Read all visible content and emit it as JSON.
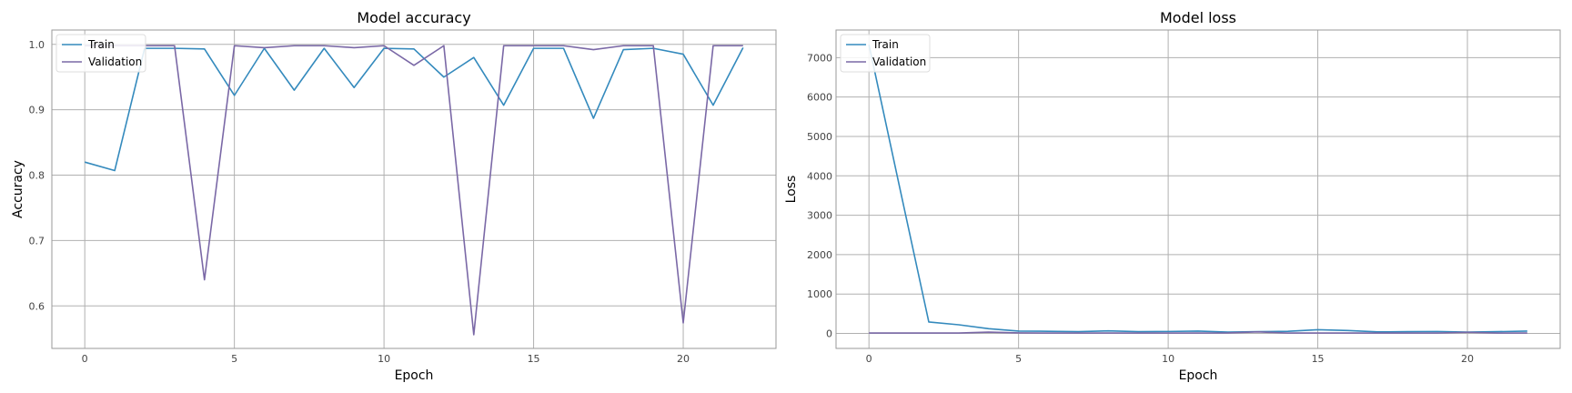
{
  "colors": {
    "train": "#348ABD",
    "validation": "#7A68A6"
  },
  "chart_data": [
    {
      "type": "line",
      "title": "Model accuracy",
      "xlabel": "Epoch",
      "ylabel": "Accuracy",
      "xlim": [
        -1.1,
        23.1
      ],
      "ylim": [
        0.535,
        1.022
      ],
      "xticks": [
        0,
        5,
        10,
        15,
        20
      ],
      "yticks": [
        0.6,
        0.7,
        0.8,
        0.9,
        1.0
      ],
      "ytick_labels": [
        "0.6",
        "0.7",
        "0.8",
        "0.9",
        "1.0"
      ],
      "grid": true,
      "legend": "upper left",
      "x": [
        0,
        1,
        2,
        3,
        4,
        5,
        6,
        7,
        8,
        9,
        10,
        11,
        12,
        13,
        14,
        15,
        16,
        17,
        18,
        19,
        20,
        21,
        22
      ],
      "series": [
        {
          "name": "Train",
          "values": [
            0.82,
            0.807,
            0.994,
            0.994,
            0.993,
            0.922,
            0.994,
            0.93,
            0.994,
            0.934,
            0.994,
            0.993,
            0.95,
            0.98,
            0.907,
            0.994,
            0.994,
            0.887,
            0.992,
            0.994,
            0.985,
            0.907,
            0.995
          ]
        },
        {
          "name": "Validation",
          "values": [
            0.998,
            0.998,
            0.998,
            0.998,
            0.64,
            0.998,
            0.995,
            0.998,
            0.998,
            0.995,
            0.998,
            0.968,
            0.998,
            0.556,
            0.998,
            0.998,
            0.998,
            0.992,
            0.998,
            0.998,
            0.574,
            0.998,
            0.998
          ]
        }
      ]
    },
    {
      "type": "line",
      "title": "Model loss",
      "xlabel": "Epoch",
      "ylabel": "Loss",
      "xlim": [
        -1.1,
        23.1
      ],
      "ylim": [
        -380,
        7700
      ],
      "xticks": [
        0,
        5,
        10,
        15,
        20
      ],
      "yticks": [
        0,
        1000,
        2000,
        3000,
        4000,
        5000,
        6000,
        7000
      ],
      "ytick_labels": [
        "0",
        "1000",
        "2000",
        "3000",
        "4000",
        "5000",
        "6000",
        "7000"
      ],
      "grid": true,
      "legend": "upper left",
      "x": [
        0,
        1,
        2,
        3,
        4,
        5,
        6,
        7,
        8,
        9,
        10,
        11,
        12,
        13,
        14,
        15,
        16,
        17,
        18,
        19,
        20,
        21,
        22
      ],
      "series": [
        {
          "name": "Train",
          "values": [
            7330,
            3800,
            290,
            220,
            120,
            60,
            55,
            45,
            65,
            45,
            50,
            60,
            35,
            45,
            55,
            95,
            75,
            40,
            45,
            50,
            35,
            45,
            60
          ]
        },
        {
          "name": "Validation",
          "values": [
            10,
            10,
            10,
            10,
            35,
            15,
            10,
            10,
            10,
            10,
            10,
            10,
            15,
            40,
            10,
            10,
            10,
            10,
            10,
            10,
            30,
            10,
            10
          ]
        }
      ]
    }
  ]
}
